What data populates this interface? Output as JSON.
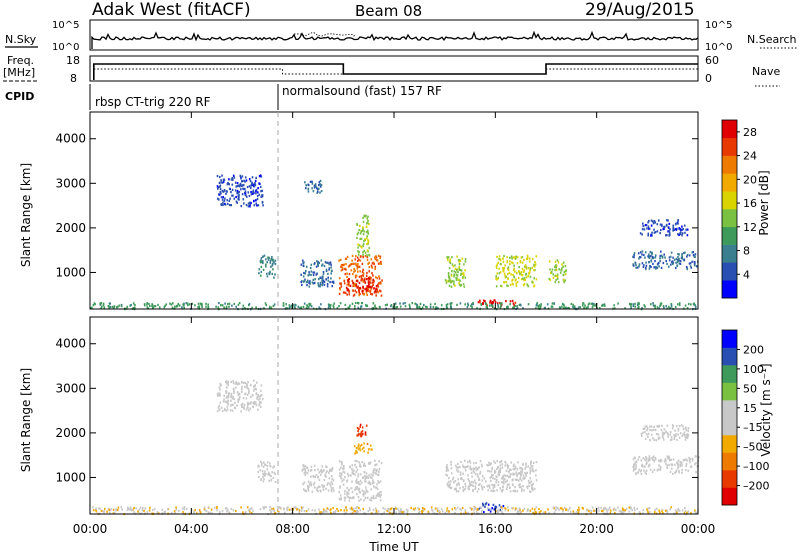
{
  "header": {
    "station": "Adak West (fitACF)",
    "beam": "Beam 08",
    "date": "29/Aug/2015"
  },
  "top_panels": {
    "nsky_label": "N.Sky",
    "nsky_ticks": [
      "10^5",
      "10^0"
    ],
    "nsearch_label": "N.Search",
    "nsearch_ticks": [
      "10^5",
      "10^0"
    ],
    "freq_label": "Freq.",
    "freq_unit": "[MHz]",
    "freq_ticks": [
      "18",
      "8"
    ],
    "nave_label": "Nave",
    "nave_ticks": [
      "60",
      "0"
    ],
    "cpid_label": "CPID",
    "cpid_modes": [
      {
        "label": "rbsp CT-trig 220 RF",
        "start_hour": 0,
        "end_hour": 7.6
      },
      {
        "label": "normalsound (fast) 157 RF",
        "start_hour": 7.6,
        "end_hour": 24
      }
    ],
    "freq_steps": [
      {
        "start_hour": 0.15,
        "end_hour": 10.0,
        "level": "high"
      },
      {
        "start_hour": 10.0,
        "end_hour": 18.0,
        "level": "low"
      },
      {
        "start_hour": 18.0,
        "end_hour": 24.0,
        "level": "high"
      }
    ]
  },
  "chart_data": [
    {
      "type": "heatmap",
      "name": "power",
      "ylabel": "Slant Range [km]",
      "yticks": [
        "1000",
        "2000",
        "3000",
        "4000"
      ],
      "ylim": [
        180,
        4600
      ],
      "colorbar_label": "Power [dB]",
      "colorbar_ticks": [
        "4",
        "8",
        "12",
        "16",
        "20",
        "24",
        "28"
      ],
      "colorbar_range": [
        0,
        30
      ],
      "colors": [
        "#0000ff",
        "#2a4fb3",
        "#3a7f90",
        "#3d9a5a",
        "#7ac142",
        "#d9d400",
        "#f2a900",
        "#ef7a00",
        "#e83a00",
        "#e00000"
      ],
      "regions": [
        {
          "t0": 9.8,
          "t1": 11.5,
          "r0": 500,
          "r1": 1400,
          "value": 24
        },
        {
          "t0": 10.1,
          "t1": 11.3,
          "r0": 600,
          "r1": 900,
          "value": 28
        },
        {
          "t0": 10.5,
          "t1": 11.0,
          "r0": 1400,
          "r1": 2300,
          "value": 14
        },
        {
          "t0": 6.6,
          "t1": 7.3,
          "r0": 900,
          "r1": 1400,
          "value": 8
        },
        {
          "t0": 8.3,
          "t1": 9.6,
          "r0": 700,
          "r1": 1300,
          "value": 6
        },
        {
          "t0": 14.0,
          "t1": 14.8,
          "r0": 700,
          "r1": 1400,
          "value": 14
        },
        {
          "t0": 15.3,
          "t1": 16.8,
          "r0": 250,
          "r1": 400,
          "value": 28
        },
        {
          "t0": 16.0,
          "t1": 17.6,
          "r0": 700,
          "r1": 1400,
          "value": 16
        },
        {
          "t0": 18.1,
          "t1": 18.8,
          "r0": 800,
          "r1": 1300,
          "value": 14
        },
        {
          "t0": 21.4,
          "t1": 24.0,
          "r0": 1100,
          "r1": 1500,
          "value": 6
        },
        {
          "t0": 21.7,
          "t1": 23.6,
          "r0": 1850,
          "r1": 2200,
          "value": 4
        },
        {
          "t0": 5.0,
          "t1": 6.8,
          "r0": 2500,
          "r1": 3200,
          "value": 4
        },
        {
          "t0": 8.4,
          "t1": 9.2,
          "r0": 2800,
          "r1": 3100,
          "value": 6
        },
        {
          "t0": 0.0,
          "t1": 24.0,
          "r0": 200,
          "r1": 340,
          "value": 10
        }
      ]
    },
    {
      "type": "heatmap",
      "name": "velocity",
      "ylabel": "Slant Range [km]",
      "yticks": [
        "1000",
        "2000",
        "3000",
        "4000"
      ],
      "ylim": [
        180,
        4600
      ],
      "xlabel": "Time UT",
      "xticks": [
        "00:00",
        "04:00",
        "08:00",
        "12:00",
        "16:00",
        "20:00",
        "00:00"
      ],
      "xlim": [
        0,
        24
      ],
      "colorbar_label": "Velocity [m s⁻¹]",
      "colorbar_ticks": [
        "200",
        "100",
        "50",
        "15",
        "–15",
        "–50",
        "–100",
        "–200"
      ],
      "colorbar_range": [
        -250,
        250
      ],
      "colors": [
        "#e00000",
        "#e83a00",
        "#ef7a00",
        "#f2a900",
        "#c8c8c8",
        "#c8c8c8",
        "#7ac142",
        "#3d9a5a",
        "#2a4fb3",
        "#0000ff"
      ],
      "regions": [
        {
          "t0": 9.8,
          "t1": 11.5,
          "r0": 500,
          "r1": 1400,
          "value": 0
        },
        {
          "t0": 10.4,
          "t1": 11.1,
          "r0": 1550,
          "r1": 1800,
          "value": -80
        },
        {
          "t0": 10.5,
          "t1": 10.9,
          "r0": 1950,
          "r1": 2250,
          "value": -180
        },
        {
          "t0": 6.6,
          "t1": 7.3,
          "r0": 900,
          "r1": 1400,
          "value": 0
        },
        {
          "t0": 8.3,
          "t1": 9.6,
          "r0": 700,
          "r1": 1300,
          "value": 0
        },
        {
          "t0": 14.0,
          "t1": 17.6,
          "r0": 700,
          "r1": 1400,
          "value": 0
        },
        {
          "t0": 15.3,
          "t1": 16.3,
          "r0": 250,
          "r1": 450,
          "value": 200
        },
        {
          "t0": 21.4,
          "t1": 24.0,
          "r0": 1100,
          "r1": 1500,
          "value": 0
        },
        {
          "t0": 21.7,
          "t1": 23.6,
          "r0": 1850,
          "r1": 2200,
          "value": 0
        },
        {
          "t0": 5.0,
          "t1": 6.8,
          "r0": 2500,
          "r1": 3200,
          "value": 0
        },
        {
          "t0": 0.0,
          "t1": 24.0,
          "r0": 200,
          "r1": 360,
          "value": -40
        }
      ]
    }
  ]
}
